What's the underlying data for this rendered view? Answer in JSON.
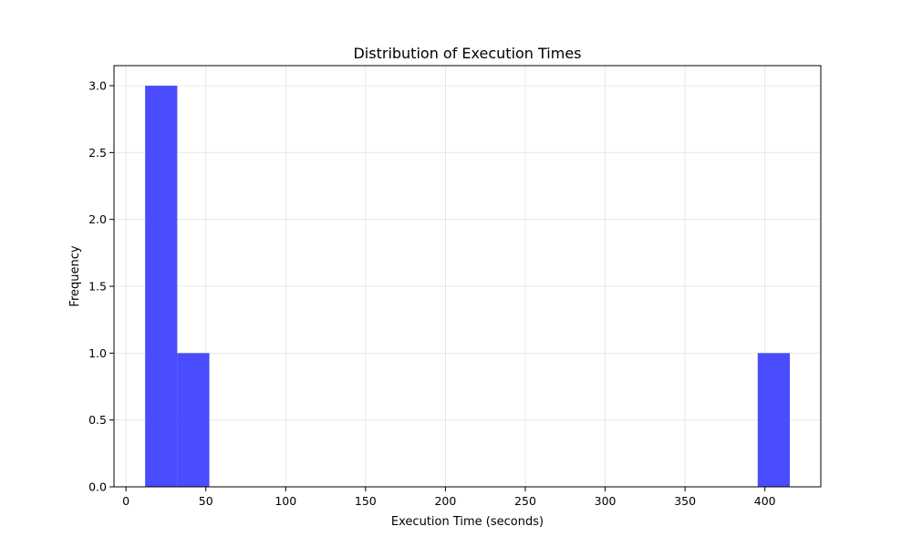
{
  "chart_data": {
    "type": "bar",
    "subtype": "histogram",
    "title": "Distribution of Execution Times",
    "xlabel": "Execution Time (seconds)",
    "ylabel": "Frequency",
    "xlim": [
      -7.5,
      435
    ],
    "ylim": [
      0,
      3.15
    ],
    "xticks": [
      0,
      50,
      100,
      150,
      200,
      250,
      300,
      350,
      400
    ],
    "xtick_labels": [
      "0",
      "50",
      "100",
      "150",
      "200",
      "250",
      "300",
      "350",
      "400"
    ],
    "yticks": [
      0,
      0.5,
      1.0,
      1.5,
      2.0,
      2.5,
      3.0
    ],
    "ytick_labels": [
      "0.0",
      "0.5",
      "1.0",
      "1.5",
      "2.0",
      "2.5",
      "3.0"
    ],
    "grid": true,
    "bar_color": "#4b4bff",
    "bins": [
      {
        "start": 12,
        "end": 32.1,
        "count": 3
      },
      {
        "start": 32.1,
        "end": 52.2,
        "count": 1
      },
      {
        "start": 395.5,
        "end": 415.6,
        "count": 1
      }
    ]
  }
}
